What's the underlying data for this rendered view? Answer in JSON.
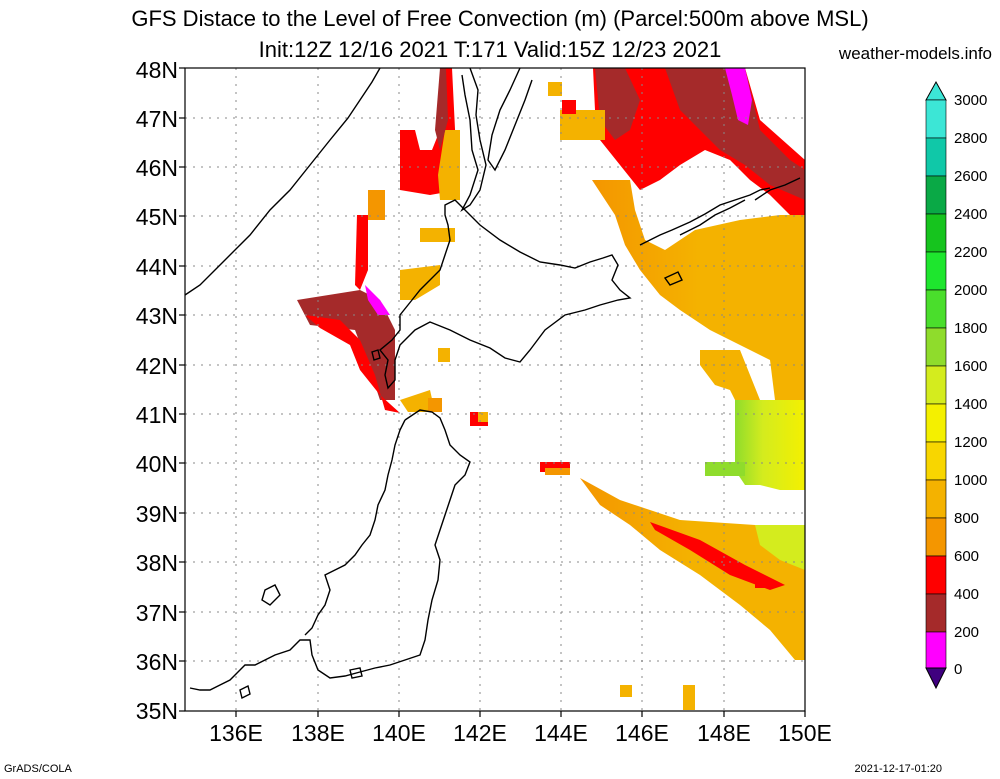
{
  "title_line1": "GFS Distace to the Level of Free Convection (m) (Parcel:500m above MSL)",
  "title_line2": "Init:12Z 12/16 2021 T:171 Valid:15Z 12/23 2021",
  "site": "weather-models.info",
  "footer_left": "GrADS/COLA",
  "footer_right": "2021-12-17-01:20",
  "lat_labels": [
    "48N",
    "47N",
    "46N",
    "45N",
    "44N",
    "43N",
    "42N",
    "41N",
    "40N",
    "39N",
    "38N",
    "37N",
    "36N",
    "35N"
  ],
  "lon_labels": [
    "136E",
    "138E",
    "140E",
    "142E",
    "144E",
    "146E",
    "148E",
    "150E"
  ],
  "colorbar": {
    "labels": [
      "3000",
      "2800",
      "2600",
      "2400",
      "2200",
      "2000",
      "1800",
      "1600",
      "1400",
      "1200",
      "1000",
      "800",
      "600",
      "400",
      "200",
      "0"
    ],
    "colors": [
      "#3ce6d6",
      "#10c8a8",
      "#0aa946",
      "#16c41e",
      "#1ee62e",
      "#4ade2c",
      "#8fdc2c",
      "#d4ec1e",
      "#f4f000",
      "#f8d600",
      "#f4b200",
      "#f49600",
      "#ff0000",
      "#a52a2a",
      "#ff00ff",
      "#3f007f"
    ]
  },
  "field_colors": {
    "c200": "#ff00ff",
    "c400": "#a52a2a",
    "c600": "#ff0000",
    "c800": "#f49600",
    "c1000": "#f4b200",
    "c1200": "#f8d600",
    "c1400": "#f4f000",
    "c1600": "#d4ec1e",
    "c1800": "#8fdc2c"
  }
}
